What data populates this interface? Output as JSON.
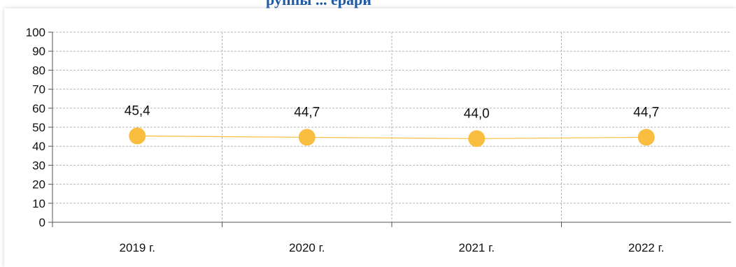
{
  "title_fragment": "руппы ... ерари",
  "colors": {
    "series": "#f9bd3f",
    "grid": "#b5b5b5",
    "axis": "#555555"
  },
  "chart_data": {
    "type": "line",
    "categories": [
      "2019 г.",
      "2020 г.",
      "2021 г.",
      "2022 г."
    ],
    "series": [
      {
        "values": [
          45.4,
          44.7,
          44.0,
          44.7
        ]
      }
    ],
    "data_labels": [
      "45,4",
      "44,7",
      "44,0",
      "44,7"
    ],
    "ylim": [
      0,
      100
    ],
    "y_ticks": [
      "0",
      "10",
      "20",
      "30",
      "40",
      "50",
      "60",
      "70",
      "80",
      "90",
      "100"
    ],
    "grid": true,
    "xlabel": "",
    "ylabel": ""
  }
}
